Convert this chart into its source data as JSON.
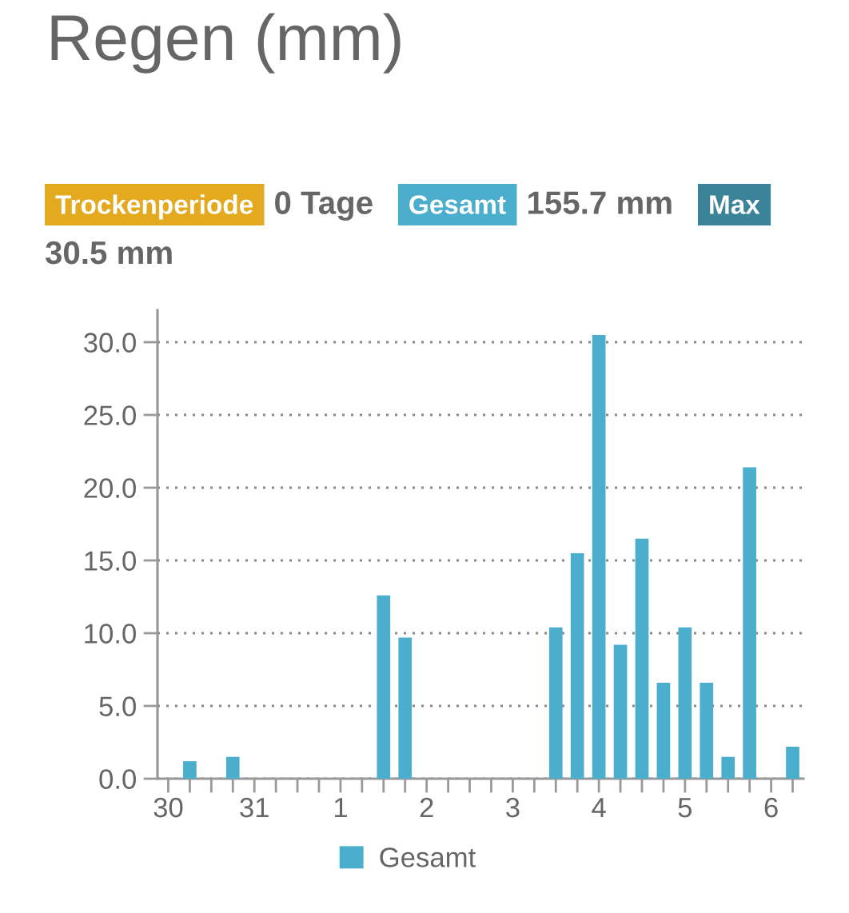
{
  "chart_data": {
    "type": "bar",
    "title": "Regen (mm)",
    "annotations": [
      "Trockenperiode",
      "0 Tage",
      "Gesamt",
      "155.7 mm",
      "Max",
      "30.5 mm"
    ],
    "categories": [
      "30",
      null,
      null,
      null,
      "31",
      null,
      null,
      null,
      "1",
      null,
      null,
      null,
      "2",
      null,
      null,
      null,
      "3",
      null,
      null,
      null,
      "4",
      null,
      null,
      null,
      "5",
      null,
      null,
      null,
      "6",
      null
    ],
    "series": [
      {
        "name": "Gesamt",
        "color": "#4aaecc",
        "values": [
          null,
          1.2,
          null,
          1.5,
          null,
          null,
          null,
          null,
          null,
          null,
          12.6,
          9.7,
          null,
          null,
          null,
          null,
          null,
          null,
          10.4,
          15.5,
          30.5,
          9.2,
          16.5,
          6.6,
          10.4,
          6.6,
          1.5,
          21.4,
          null,
          2.2
        ]
      }
    ],
    "ylim": [
      0,
      32.2
    ],
    "yticks": [
      {
        "value": 0,
        "label": "0.0"
      },
      {
        "value": 5,
        "label": "5.0"
      },
      {
        "value": 10,
        "label": "10.0"
      },
      {
        "value": 15,
        "label": "15.0"
      },
      {
        "value": 20,
        "label": "20.0"
      },
      {
        "value": 25,
        "label": "25.0"
      },
      {
        "value": 30,
        "label": "30.0"
      }
    ],
    "grid": "y",
    "legend": "bottom"
  }
}
